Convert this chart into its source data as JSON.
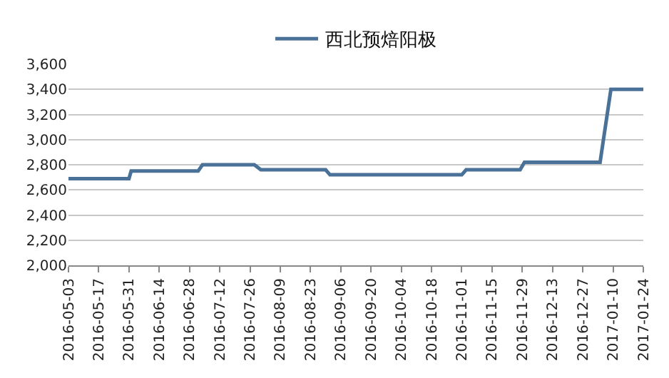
{
  "chart_data": {
    "type": "line",
    "legend": "top",
    "grid": "y",
    "marker": "none",
    "line_style": "solid",
    "x": [
      "2016-05-03",
      "2016-05-31",
      "2016-06-01",
      "2016-07-02",
      "2016-07-04",
      "2016-07-28",
      "2016-07-31",
      "2016-08-30",
      "2016-09-01",
      "2016-11-01",
      "2016-11-03",
      "2016-11-28",
      "2016-11-30",
      "2017-01-04",
      "2017-01-09",
      "2017-01-24"
    ],
    "series": [
      {
        "name": "西北预焙阳极",
        "color": "#4a7198",
        "values": [
          2690,
          2690,
          2750,
          2750,
          2800,
          2800,
          2760,
          2760,
          2720,
          2720,
          2760,
          2760,
          2820,
          2820,
          3400,
          3400
        ]
      }
    ],
    "xlim": [
      "2016-05-03",
      "2017-01-24"
    ],
    "xticks": [
      "2016-05-03",
      "2016-05-17",
      "2016-05-31",
      "2016-06-14",
      "2016-06-28",
      "2016-07-12",
      "2016-07-26",
      "2016-08-09",
      "2016-08-23",
      "2016-09-06",
      "2016-09-20",
      "2016-10-04",
      "2016-10-18",
      "2016-11-01",
      "2016-11-15",
      "2016-11-29",
      "2016-12-13",
      "2016-12-27",
      "2017-01-10",
      "2017-01-24"
    ],
    "ylim": [
      2000,
      3600
    ],
    "yticks": [
      {
        "value": 2000,
        "label": "2,000"
      },
      {
        "value": 2200,
        "label": "2,200"
      },
      {
        "value": 2400,
        "label": "2,400"
      },
      {
        "value": 2600,
        "label": "2,600"
      },
      {
        "value": 2800,
        "label": "2,800"
      },
      {
        "value": 3000,
        "label": "3,000"
      },
      {
        "value": 3200,
        "label": "3,200"
      },
      {
        "value": 3400,
        "label": "3,400"
      },
      {
        "value": 3600,
        "label": "3,600"
      }
    ]
  }
}
